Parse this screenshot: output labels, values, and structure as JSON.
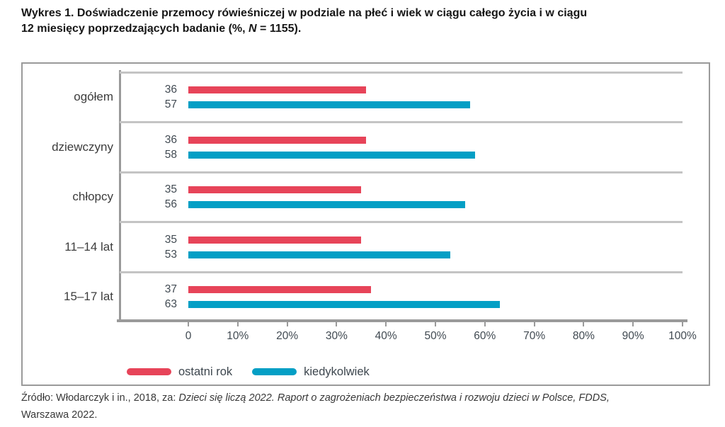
{
  "title": {
    "line1": "Wykres 1. Doświadczenie przemocy rówieśniczej w podziale na płeć i wiek w ciągu całego życia i w ciągu",
    "line2_prefix": "12 miesięcy poprzedzających badanie (%, ",
    "line2_italic": "N",
    "line2_suffix": " = 1155)."
  },
  "chart_data": {
    "type": "bar",
    "orientation": "horizontal",
    "title": "Wykres 1. Doświadczenie przemocy rówieśniczej w podziale na płeć i wiek w ciągu całego życia i w ciągu 12 miesięcy poprzedzających badanie (%, N = 1155).",
    "categories": [
      "ogółem",
      "dziewczyny",
      "chłopcy",
      "11–14 lat",
      "15–17 lat"
    ],
    "series": [
      {
        "name": "ostatni rok",
        "color": "#e74459",
        "values": [
          36,
          36,
          35,
          35,
          37
        ]
      },
      {
        "name": "kiedykolwiek",
        "color": "#049fc5",
        "values": [
          57,
          58,
          56,
          53,
          63
        ]
      }
    ],
    "x_axis": {
      "min": 0,
      "max": 100,
      "tick_step": 10,
      "ticks": [
        "0",
        "10%",
        "20%",
        "30%",
        "40%",
        "50%",
        "60%",
        "70%",
        "80%",
        "90%",
        "100%"
      ]
    },
    "value_labels_shown": true,
    "legend_position": "bottom",
    "grid": "horizontal-row-separators",
    "grid_color": "#c4c4c4",
    "axis_color": "#9a9a9a"
  },
  "source": {
    "line1_prefix": "Źródło: Włodarczyk i in., 2018, za: ",
    "line1_italic": "Dzieci się liczą 2022. Raport o zagrożeniach bezpieczeństwa i rozwoju dzieci w Polsce, FDDS,",
    "line2": "Warszawa 2022."
  }
}
